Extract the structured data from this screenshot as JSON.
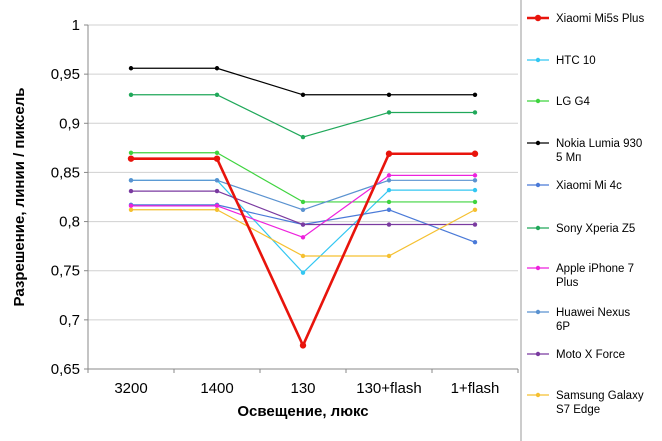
{
  "chart_data": {
    "type": "line",
    "xlabel": "Освещение,  люкс",
    "ylabel": "Разрешение,  линии / пиксель",
    "categories": [
      "3200",
      "1400",
      "130",
      "130+flash",
      "1+flash"
    ],
    "ylim": [
      0.65,
      1
    ],
    "yticks": [
      "0,65",
      "0,7",
      "0,75",
      "0,8",
      "0,85",
      "0,9",
      "0,95",
      "1"
    ],
    "grid": "horizontal",
    "legend_position": "right",
    "series": [
      {
        "name": "Xiaomi Mi5s Plus",
        "name_lines": [
          "Xiaomi Mi5s Plus"
        ],
        "color": "#e8140c",
        "bold": true,
        "values": [
          0.864,
          0.864,
          0.674,
          0.869,
          0.869
        ]
      },
      {
        "name": "HTC 10",
        "name_lines": [
          "HTC 10"
        ],
        "color": "#33c7f2",
        "bold": false,
        "values": [
          0.842,
          0.842,
          0.748,
          0.832,
          0.832
        ]
      },
      {
        "name": "LG G4",
        "name_lines": [
          "LG G4"
        ],
        "color": "#3fd43f",
        "bold": false,
        "values": [
          0.87,
          0.87,
          0.82,
          0.82,
          0.82
        ]
      },
      {
        "name": "Nokia Lumia 930 5 Мп",
        "name_lines": [
          "Nokia Lumia 930",
          "5 Мп"
        ],
        "color": "#000000",
        "bold": false,
        "values": [
          0.956,
          0.956,
          0.929,
          0.929,
          0.929
        ]
      },
      {
        "name": "Xiaomi Mi 4c",
        "name_lines": [
          "Xiaomi Mi 4c"
        ],
        "color": "#4a7ad8",
        "bold": false,
        "values": [
          0.817,
          0.817,
          0.797,
          0.812,
          0.779
        ]
      },
      {
        "name": "Sony Xperia Z5",
        "name_lines": [
          "Sony Xperia Z5"
        ],
        "color": "#20a85a",
        "bold": false,
        "values": [
          0.929,
          0.929,
          0.886,
          0.911,
          0.911
        ]
      },
      {
        "name": "Apple iPhone 7 Plus",
        "name_lines": [
          "Apple iPhone 7",
          "Plus"
        ],
        "color": "#ee22dd",
        "bold": false,
        "values": [
          0.816,
          0.816,
          0.784,
          0.847,
          0.847
        ]
      },
      {
        "name": "Huawei Nexus 6P",
        "name_lines": [
          "Huawei Nexus",
          "6P"
        ],
        "color": "#5a92d0",
        "bold": false,
        "values": [
          0.842,
          0.842,
          0.812,
          0.842,
          0.842
        ]
      },
      {
        "name": "Moto X Force",
        "name_lines": [
          "Moto X Force"
        ],
        "color": "#7a3aa0",
        "bold": false,
        "values": [
          0.831,
          0.831,
          0.797,
          0.797,
          0.797
        ]
      },
      {
        "name": "Samsung Galaxy S7 Edge",
        "name_lines": [
          "Samsung Galaxy",
          "S7 Edge"
        ],
        "color": "#f5c030",
        "bold": false,
        "values": [
          0.812,
          0.812,
          0.765,
          0.765,
          0.812
        ]
      }
    ]
  }
}
